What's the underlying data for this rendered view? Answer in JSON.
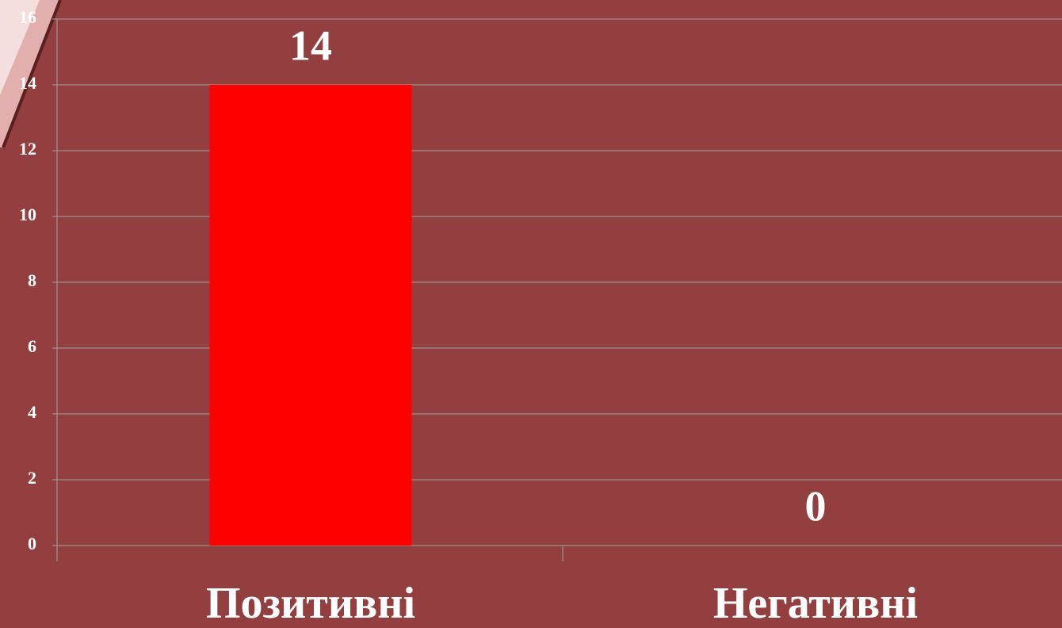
{
  "chart_data": {
    "type": "bar",
    "categories": [
      "Позитивні",
      "Негативні"
    ],
    "values": [
      14,
      0
    ],
    "color": "#ff0000",
    "ylim": [
      0,
      16
    ],
    "yticks": [
      0,
      2,
      4,
      6,
      8,
      10,
      12,
      14,
      16
    ],
    "grid": true,
    "data_labels": true
  }
}
